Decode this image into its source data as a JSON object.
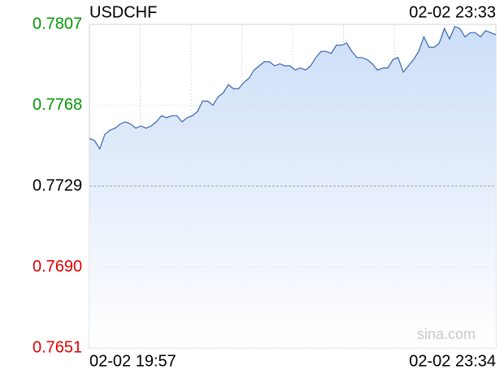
{
  "chart_data": {
    "type": "area",
    "title": "USDCHF",
    "timestamp": "02-02 23:33",
    "x_start_label": "02-02 19:57",
    "x_end_label": "02-02 23:34",
    "watermark": "sina.com",
    "color": "#3a66b0",
    "fill_color": "#c9dcf7",
    "up_color": "#009900",
    "down_color": "#e00000",
    "reference": 0.7729,
    "ylim": [
      0.7651,
      0.7807
    ],
    "yticks": [
      0.7807,
      0.7768,
      0.7729,
      {
        "value": 0.769,
        "label": "0.7690"
      },
      0.7651
    ],
    "grid": true,
    "values": [
      0.7752,
      0.7751,
      0.7747,
      0.7754,
      0.7756,
      0.7757,
      0.7759,
      0.776,
      0.7759,
      0.7757,
      0.7758,
      0.7757,
      0.7758,
      0.776,
      0.7763,
      0.7762,
      0.7763,
      0.7763,
      0.776,
      0.7762,
      0.7763,
      0.7765,
      0.777,
      0.777,
      0.7768,
      0.7772,
      0.7774,
      0.7778,
      0.7776,
      0.7776,
      0.7779,
      0.7781,
      0.7785,
      0.7787,
      0.7789,
      0.7789,
      0.7787,
      0.7788,
      0.7787,
      0.7787,
      0.7785,
      0.7786,
      0.7785,
      0.7787,
      0.7791,
      0.7794,
      0.7794,
      0.7793,
      0.7797,
      0.7797,
      0.7798,
      0.7794,
      0.7791,
      0.7791,
      0.779,
      0.7788,
      0.7785,
      0.7786,
      0.7786,
      0.779,
      0.7791,
      0.7784,
      0.7787,
      0.779,
      0.7794,
      0.7801,
      0.7796,
      0.7796,
      0.7798,
      0.7805,
      0.78,
      0.7806,
      0.7805,
      0.7801,
      0.7803,
      0.7803,
      0.7801,
      0.7804,
      0.7803,
      0.7802
    ]
  }
}
